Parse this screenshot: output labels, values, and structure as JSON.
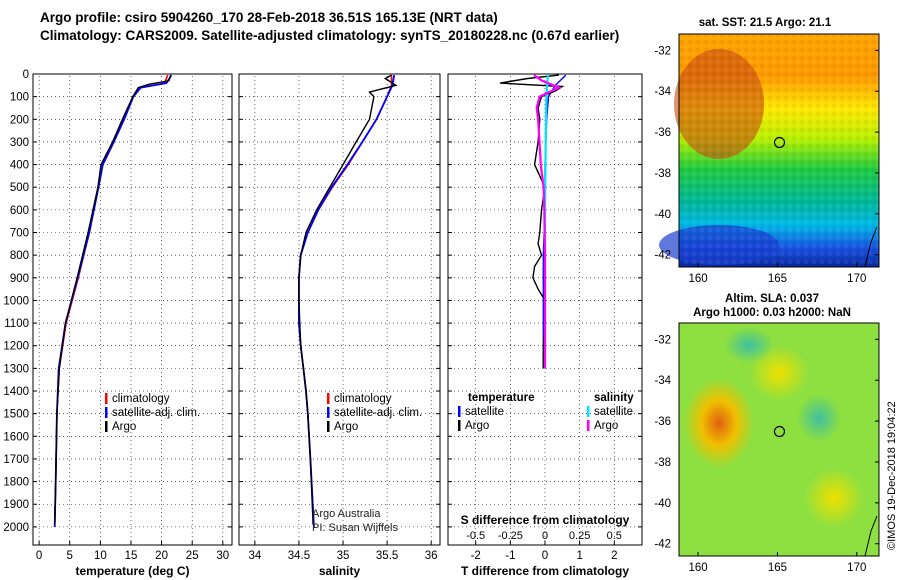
{
  "header": {
    "title_line1": "Argo profile: csiro 5904260_170 28-Feb-2018 36.51S 165.13E (NRT data)",
    "title_line2": "Climatology: CARS2009. Satellite-adjusted climatology: synTS_20180228.nc (0.67d earlier)"
  },
  "colors": {
    "argo": "#000000",
    "climatology": "#ff0000",
    "satellite": "#0000ff",
    "sat_salinity": "#00e5ff",
    "argo_salinity": "#ff00ff"
  },
  "chart_data": [
    {
      "type": "line",
      "name": "temperature",
      "xlabel": "temperature (deg C)",
      "xticks": [
        0,
        5,
        10,
        15,
        20,
        25,
        30
      ],
      "xlim": [
        -1,
        31.5
      ],
      "ylim": [
        2080,
        0
      ],
      "yticks": [
        0,
        100,
        200,
        300,
        400,
        500,
        600,
        700,
        800,
        900,
        1000,
        1100,
        1200,
        1300,
        1400,
        1500,
        1600,
        1700,
        1800,
        1900,
        2000
      ],
      "legend": [
        "climatology",
        "satellite-adj. clim.",
        "Argo"
      ],
      "series": [
        {
          "name": "climatology",
          "depth": [
            5,
            40,
            60,
            100,
            200,
            300,
            400,
            500,
            700,
            900,
            1100,
            1300,
            1500,
            1800,
            2000
          ],
          "values": [
            21.0,
            20.5,
            16.5,
            15.4,
            13.8,
            12.2,
            10.4,
            9.7,
            8.2,
            6.4,
            4.4,
            3.3,
            2.9,
            2.7,
            2.55
          ]
        },
        {
          "name": "satellite-adj. clim.",
          "depth": [
            5,
            40,
            60,
            100,
            200,
            300,
            400,
            500,
            700,
            900,
            1100,
            1300,
            1500,
            1800,
            2000
          ],
          "values": [
            21.6,
            20.8,
            16.6,
            15.4,
            13.9,
            12.2,
            10.4,
            9.7,
            8.2,
            6.3,
            4.3,
            3.2,
            2.9,
            2.7,
            2.55
          ]
        },
        {
          "name": "Argo",
          "depth": [
            5,
            30,
            45,
            60,
            100,
            200,
            300,
            400,
            500,
            700,
            900,
            1100,
            1300,
            1500,
            1800,
            1990
          ],
          "values": [
            21.5,
            21.2,
            18.0,
            16.2,
            15.3,
            13.6,
            12.0,
            10.1,
            9.6,
            8.0,
            6.2,
            4.3,
            3.3,
            2.9,
            2.7,
            2.55
          ]
        }
      ]
    },
    {
      "type": "line",
      "name": "salinity",
      "xlabel": "salinity",
      "xticks": [
        34,
        34.5,
        35,
        35.5,
        36
      ],
      "xlim": [
        33.82,
        36.1
      ],
      "ylim": [
        2080,
        0
      ],
      "legend": [
        "climatology",
        "satellite-adj. clim.",
        "Argo"
      ],
      "annotation": [
        "Argo Australia",
        "PI: Susan Wijffels"
      ],
      "series": [
        {
          "name": "climatology",
          "depth": [
            5,
            50,
            100,
            200,
            300,
            400,
            500,
            600,
            700,
            800,
            900,
            1000,
            1100,
            1200,
            1300,
            1400,
            1500,
            1700,
            2000
          ],
          "values": [
            35.55,
            35.55,
            35.5,
            35.38,
            35.22,
            35.06,
            34.88,
            34.72,
            34.6,
            34.52,
            34.5,
            34.5,
            34.5,
            34.52,
            34.55,
            34.58,
            34.6,
            34.63,
            34.67
          ]
        },
        {
          "name": "satellite-adj. clim.",
          "depth": [
            5,
            50,
            100,
            200,
            300,
            400,
            500,
            600,
            700,
            800,
            900,
            1000,
            1100,
            1200,
            1300,
            1400,
            1500,
            1700,
            2000
          ],
          "values": [
            35.58,
            35.56,
            35.5,
            35.38,
            35.22,
            35.05,
            34.87,
            34.72,
            34.6,
            34.52,
            34.5,
            34.5,
            34.5,
            34.52,
            34.55,
            34.58,
            34.6,
            34.63,
            34.67
          ]
        },
        {
          "name": "Argo",
          "depth": [
            5,
            20,
            50,
            80,
            100,
            200,
            300,
            400,
            500,
            600,
            700,
            800,
            900,
            1000,
            1100,
            1200,
            1300,
            1400,
            1500,
            1700,
            1990
          ],
          "values": [
            35.55,
            35.48,
            35.6,
            35.3,
            35.35,
            35.3,
            35.15,
            35.0,
            34.85,
            34.7,
            34.58,
            34.52,
            34.5,
            34.5,
            34.51,
            34.52,
            34.55,
            34.58,
            34.6,
            34.63,
            34.66
          ]
        }
      ]
    },
    {
      "type": "line",
      "name": "differences",
      "xlabel": "T difference from climatology",
      "x2label": "S difference from climatology",
      "xticks": [
        -2,
        -1,
        0,
        1,
        2
      ],
      "x2ticks": [
        -0.5,
        -0.25,
        0,
        0.25,
        0.5
      ],
      "xlim": [
        -2.8,
        2.8
      ],
      "ylim": [
        2080,
        0
      ],
      "legend_temperature": {
        "heading": "temperature",
        "items": [
          "satellite",
          "Argo"
        ]
      },
      "legend_salinity": {
        "heading": "salinity",
        "items": [
          "satellite",
          "Argo"
        ]
      },
      "series": [
        {
          "name": "T satellite",
          "depth": [
            5,
            50,
            100,
            200,
            400,
            600,
            800,
            1000,
            1300
          ],
          "values": [
            0.6,
            0.3,
            0.1,
            0.05,
            0.0,
            0.0,
            -0.05,
            -0.05,
            -0.05
          ]
        },
        {
          "name": "T Argo",
          "depth": [
            5,
            20,
            40,
            55,
            75,
            100,
            150,
            200,
            300,
            400,
            500,
            600,
            700,
            750,
            800,
            850,
            900,
            950,
            1000,
            1100,
            1200,
            1300
          ],
          "values": [
            0.4,
            -0.5,
            -1.3,
            0.5,
            0.3,
            -0.1,
            -0.2,
            -0.15,
            -0.2,
            -0.3,
            0.0,
            -0.1,
            -0.15,
            -0.2,
            -0.1,
            -0.3,
            -0.35,
            -0.2,
            0.0,
            0.0,
            -0.05,
            -0.05
          ]
        },
        {
          "name": "S satellite",
          "depth": [
            5,
            100,
            300,
            600,
            900,
            1300
          ],
          "values": [
            0.02,
            0.01,
            0.005,
            0.0,
            0.0,
            0.0
          ]
        },
        {
          "name": "S Argo",
          "depth": [
            5,
            30,
            60,
            100,
            150,
            200,
            300,
            400,
            500,
            600,
            800,
            1000,
            1300
          ],
          "values": [
            -0.08,
            -0.02,
            0.1,
            -0.04,
            -0.06,
            -0.05,
            -0.04,
            -0.03,
            -0.01,
            -0.005,
            0.0,
            0.0,
            0.0
          ]
        }
      ]
    },
    {
      "type": "heatmap",
      "name": "sst-map",
      "title": "sat. SST: 21.5 Argo: 21.1",
      "xticks": [
        160,
        165,
        170
      ],
      "yticks": [
        -32,
        -34,
        -36,
        -38,
        -40,
        -42
      ],
      "marker": {
        "lon": 165.13,
        "lat": -36.51
      }
    },
    {
      "type": "heatmap",
      "name": "sla-map",
      "title_line1": "Altim. SLA: 0.037",
      "title_line2": "Argo h1000: 0.03 h2000: NaN",
      "xticks": [
        160,
        165,
        170
      ],
      "yticks": [
        -32,
        -34,
        -36,
        -38,
        -40,
        -42
      ],
      "marker": {
        "lon": 165.13,
        "lat": -36.51
      }
    }
  ],
  "footer": {
    "credit": "©IMOS 19-Dec-2018 19:04:22"
  }
}
